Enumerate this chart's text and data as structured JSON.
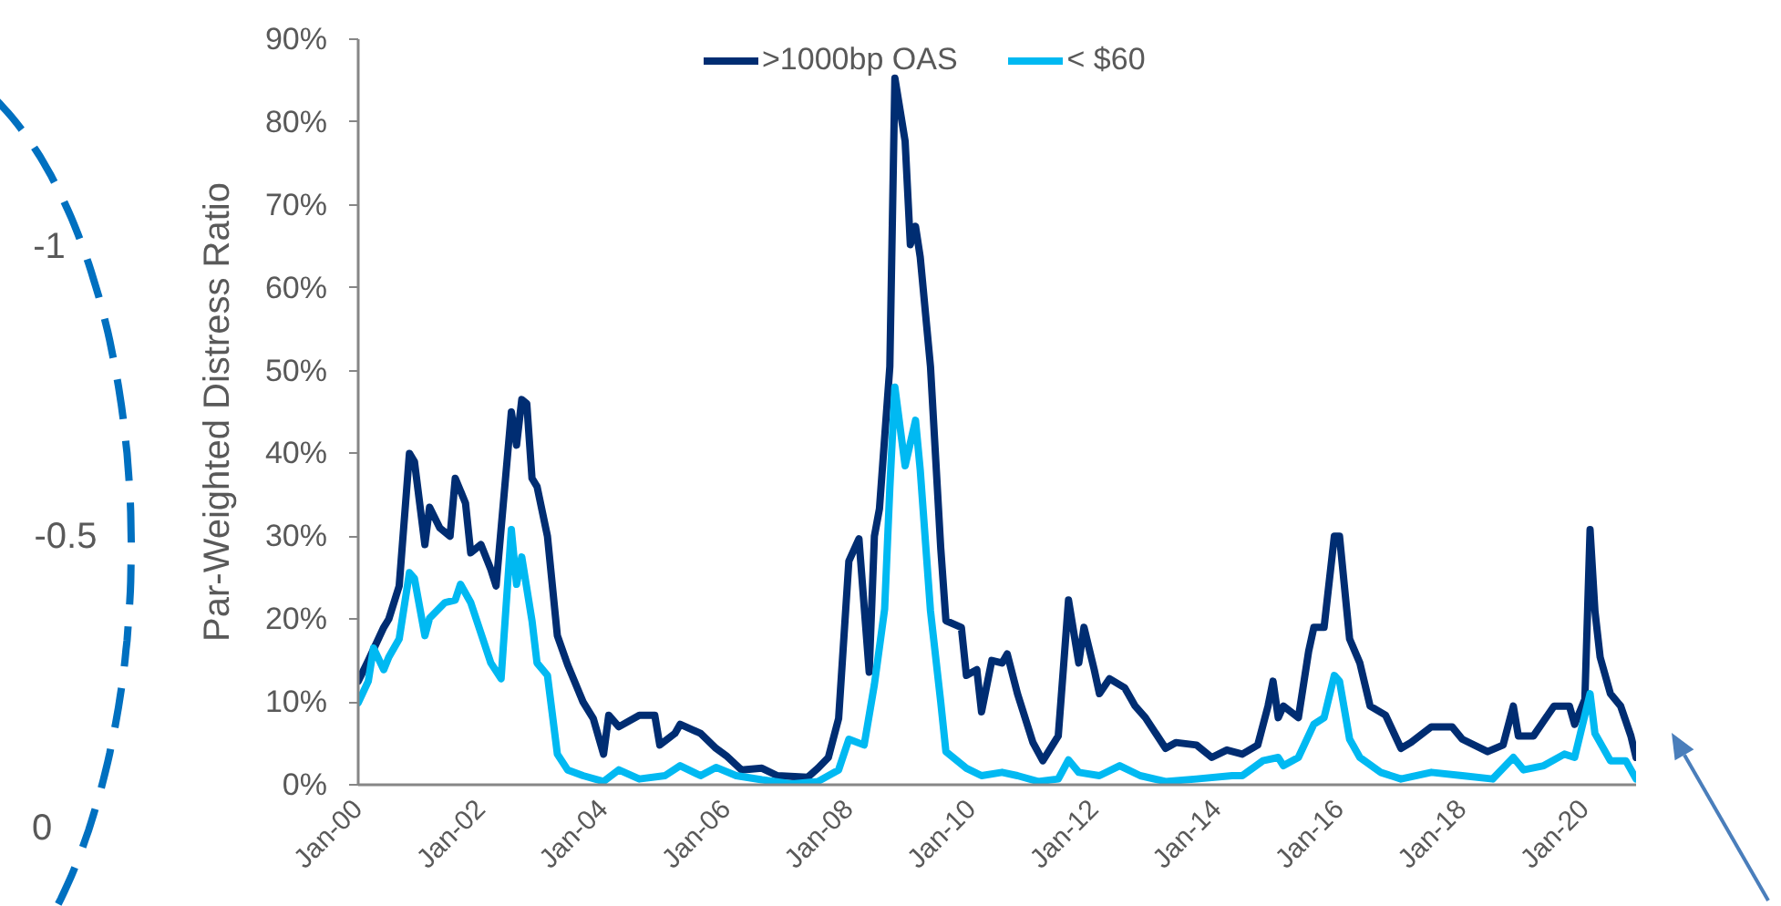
{
  "chart_data": {
    "type": "line",
    "ylabel": "Par-Weighted Distress Ratio",
    "legend": "top",
    "grid": false,
    "line_style": "solid",
    "xlim": [
      "2000-01",
      "2020-11"
    ],
    "xticks": [
      {
        "value": "2000-01",
        "label": "Jan-00"
      },
      {
        "value": "2002-01",
        "label": "Jan-02"
      },
      {
        "value": "2004-01",
        "label": "Jan-04"
      },
      {
        "value": "2006-01",
        "label": "Jan-06"
      },
      {
        "value": "2008-01",
        "label": "Jan-08"
      },
      {
        "value": "2010-01",
        "label": "Jan-10"
      },
      {
        "value": "2012-01",
        "label": "Jan-12"
      },
      {
        "value": "2014-01",
        "label": "Jan-14"
      },
      {
        "value": "2016-01",
        "label": "Jan-16"
      },
      {
        "value": "2018-01",
        "label": "Jan-18"
      },
      {
        "value": "2020-01",
        "label": "Jan-20"
      }
    ],
    "ylim": [
      0,
      90
    ],
    "yticks": [
      {
        "value": 0,
        "label": "0%"
      },
      {
        "value": 10,
        "label": "10%"
      },
      {
        "value": 20,
        "label": "20%"
      },
      {
        "value": 30,
        "label": "30%"
      },
      {
        "value": 40,
        "label": "40%"
      },
      {
        "value": 50,
        "label": "50%"
      },
      {
        "value": 60,
        "label": "60%"
      },
      {
        "value": 70,
        "label": "70%"
      },
      {
        "value": 80,
        "label": "80%"
      },
      {
        "value": 90,
        "label": "90%"
      }
    ],
    "series": [
      {
        "name": ">1000bp OAS",
        "color": "#002d72",
        "x": [
          "2000-01",
          "2000-03",
          "2000-06",
          "2000-07",
          "2000-09",
          "2000-11",
          "2000-12",
          "2001-02",
          "2001-03",
          "2001-05",
          "2001-07",
          "2001-08",
          "2001-10",
          "2001-11",
          "2002-01",
          "2002-03",
          "2002-04",
          "2002-07",
          "2002-08",
          "2002-09",
          "2002-10",
          "2002-11",
          "2002-12",
          "2003-02",
          "2003-04",
          "2003-06",
          "2003-09",
          "2003-11",
          "2004-01",
          "2004-02",
          "2004-04",
          "2004-08",
          "2004-11",
          "2004-12",
          "2005-03",
          "2005-04",
          "2005-08",
          "2005-11",
          "2006-01",
          "2006-04",
          "2006-08",
          "2006-11",
          "2007-05",
          "2007-07",
          "2007-09",
          "2007-11",
          "2008-01",
          "2008-03",
          "2008-05",
          "2008-06",
          "2008-07",
          "2008-09",
          "2008-10",
          "2008-12",
          "2009-01",
          "2009-02",
          "2009-03",
          "2009-05",
          "2009-07",
          "2009-08",
          "2009-11",
          "2009-12",
          "2010-02",
          "2010-03",
          "2010-05",
          "2010-07",
          "2010-08",
          "2010-10",
          "2011-01",
          "2011-03",
          "2011-06",
          "2011-07",
          "2011-08",
          "2011-10",
          "2011-11",
          "2012-01",
          "2012-02",
          "2012-04",
          "2012-07",
          "2012-09",
          "2012-11",
          "2013-03",
          "2013-05",
          "2013-09",
          "2013-12",
          "2014-03",
          "2014-06",
          "2014-09",
          "2014-11",
          "2014-12",
          "2015-01",
          "2015-02",
          "2015-05",
          "2015-07",
          "2015-08",
          "2015-10",
          "2015-12",
          "2016-01",
          "2016-03",
          "2016-05",
          "2016-07",
          "2016-10",
          "2017-01",
          "2017-03",
          "2017-07",
          "2017-11",
          "2018-01",
          "2018-06",
          "2018-09",
          "2018-11",
          "2018-12",
          "2019-03",
          "2019-05",
          "2019-07",
          "2019-10",
          "2019-11",
          "2020-01",
          "2020-02",
          "2020-03",
          "2020-04",
          "2020-06",
          "2020-08",
          "2020-10",
          "2020-11"
        ],
        "values": [
          12.5,
          15,
          19,
          20,
          24,
          40,
          39,
          29,
          33.5,
          31,
          30,
          37,
          34,
          28,
          29,
          26,
          24,
          45,
          41,
          46.5,
          46,
          37,
          36,
          30,
          18,
          14.5,
          10,
          8,
          3.7,
          8.4,
          7,
          8.4,
          8.4,
          4.8,
          6.2,
          7.3,
          6.2,
          4.4,
          3.5,
          1.8,
          2,
          1.1,
          0.9,
          2,
          3.3,
          8,
          27,
          29.7,
          13.6,
          30,
          33.3,
          50.5,
          85.3,
          77.7,
          65.2,
          67.4,
          63.7,
          50.5,
          28.6,
          19.8,
          19,
          13.2,
          13.9,
          8.8,
          15,
          14.7,
          15.8,
          11,
          5.1,
          2.9,
          5.9,
          13.9,
          22.3,
          14.7,
          19,
          13.9,
          11,
          12.8,
          11.7,
          9.5,
          8.1,
          4.4,
          5.1,
          4.8,
          3.3,
          4.2,
          3.7,
          4.8,
          9.5,
          12.5,
          8.1,
          9.5,
          8.1,
          16.1,
          19,
          19,
          30,
          30,
          17.6,
          14.7,
          9.5,
          8.4,
          4.4,
          5.1,
          7,
          7,
          5.5,
          4,
          4.8,
          9.5,
          5.9,
          5.9,
          7.7,
          9.5,
          9.5,
          7.3,
          10.3,
          30.8,
          21,
          15.4,
          11,
          9.5,
          5.9,
          3.3
        ]
      },
      {
        "name": "< $60",
        "color": "#00b9f2",
        "x": [
          "2000-01",
          "2000-03",
          "2000-04",
          "2000-06",
          "2000-07",
          "2000-09",
          "2000-11",
          "2000-12",
          "2001-02",
          "2001-03",
          "2001-06",
          "2001-08",
          "2001-09",
          "2001-11",
          "2002-01",
          "2002-03",
          "2002-05",
          "2002-07",
          "2002-08",
          "2002-09",
          "2002-11",
          "2002-12",
          "2003-02",
          "2003-04",
          "2003-06",
          "2003-09",
          "2004-01",
          "2004-04",
          "2004-08",
          "2005-01",
          "2005-04",
          "2005-08",
          "2005-11",
          "2006-03",
          "2006-08",
          "2007-02",
          "2007-07",
          "2007-11",
          "2008-01",
          "2008-04",
          "2008-06",
          "2008-08",
          "2008-09",
          "2008-10",
          "2008-12",
          "2009-02",
          "2009-03",
          "2009-05",
          "2009-07",
          "2009-08",
          "2009-12",
          "2010-03",
          "2010-07",
          "2010-10",
          "2011-02",
          "2011-06",
          "2011-08",
          "2011-10",
          "2012-02",
          "2012-06",
          "2012-10",
          "2013-03",
          "2013-09",
          "2014-04",
          "2014-06",
          "2014-10",
          "2015-01",
          "2015-02",
          "2015-05",
          "2015-08",
          "2015-10",
          "2015-12",
          "2016-01",
          "2016-03",
          "2016-05",
          "2016-09",
          "2017-01",
          "2017-07",
          "2018-01",
          "2018-07",
          "2018-11",
          "2019-01",
          "2019-05",
          "2019-09",
          "2019-11",
          "2020-02",
          "2020-03",
          "2020-06",
          "2020-09",
          "2020-11"
        ],
        "values": [
          9.9,
          12.5,
          16.5,
          13.9,
          15.4,
          17.6,
          25.6,
          24.9,
          18,
          20.1,
          22,
          22.3,
          24.2,
          22,
          18.3,
          14.7,
          12.8,
          30.8,
          24.2,
          27.5,
          19.8,
          14.7,
          13.2,
          3.7,
          1.8,
          1.1,
          0.4,
          1.8,
          0.7,
          1.1,
          2.3,
          1.1,
          2.1,
          1.1,
          0.6,
          0.1,
          0.4,
          1.8,
          5.5,
          4.8,
          12.1,
          21.2,
          35.9,
          48,
          38.5,
          44,
          38,
          21,
          10,
          4,
          2,
          1.1,
          1.5,
          1.1,
          0.4,
          0.7,
          3,
          1.5,
          1.1,
          2.3,
          1.1,
          0.4,
          0.7,
          1.1,
          1.1,
          2.9,
          3.3,
          2.3,
          3.3,
          7.3,
          8.1,
          13.2,
          12.5,
          5.5,
          3.3,
          1.5,
          0.7,
          1.5,
          1.1,
          0.7,
          3.3,
          1.8,
          2.3,
          3.7,
          3.3,
          11,
          6.2,
          2.9,
          2.9,
          0.7
        ]
      }
    ],
    "annotations": [
      "-1",
      "-0.5",
      "0"
    ]
  }
}
